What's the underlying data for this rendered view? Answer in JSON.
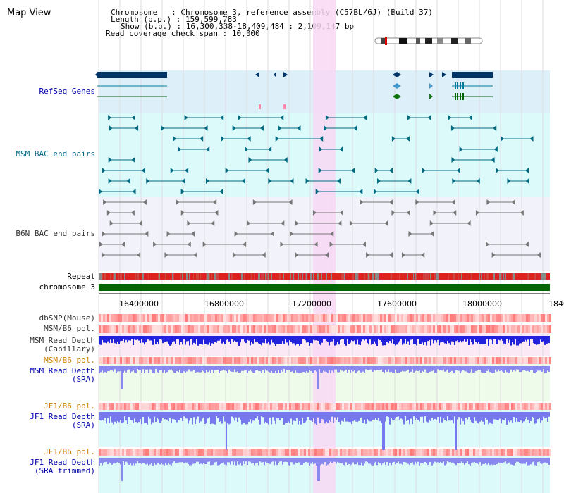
{
  "view_title": "Map View",
  "info": {
    "chromosome_label": "Chromosome",
    "chromosome_value": "Chromosome 3, reference assembly (C57BL/6J) (Build 37)",
    "length_label": "Length (b.p.)",
    "length_value": "159,599,783",
    "show_label": "Show (b.p.)",
    "show_value": "16,300,338-18,409,484 : 2,109,147 bp",
    "coverage_label": "Read coverage check span",
    "coverage_value": "10,000"
  },
  "tracks": {
    "refseq": "RefSeq Genes",
    "msm_bac": "MSM BAC end pairs",
    "b6n_bac": "B6N BAC end pairs",
    "repeat": "Repeat",
    "chromosome": "chromosome 3",
    "dbsnp": "dbSNP(Mouse)",
    "msm_b6_pol": "MSM/B6 pol.",
    "msm_depth_cap_1": "MSM Read Depth",
    "msm_depth_cap_2": "(Capillary)",
    "msm_b6_pol_2": "MSM/B6 pol.",
    "msm_depth_sra_1": "MSM Read Depth",
    "msm_depth_sra_2": "(SRA)",
    "jf1_b6_pol": "JF1/B6 pol.",
    "jf1_depth_sra_1": "JF1 Read Depth",
    "jf1_depth_sra_2": "(SRA)",
    "jf1_b6_pol_2": "JF1/B6 pol.",
    "jf1_depth_trim_1": "JF1 Read Depth",
    "jf1_depth_trim_2": "(SRA trimmed)"
  },
  "axis": {
    "ticks": [
      "16400000",
      "16800000",
      "17200000",
      "17600000",
      "18000000",
      "1840"
    ]
  },
  "colors": {
    "refseq_bg": "#ddf0fa",
    "msm_bg": "#ddfafa",
    "b6n_bg": "#f2f2fa",
    "highlight": "#f8d8f4",
    "chromosome_bar": "#006600",
    "gene_dark": "#003366",
    "gene_teal": "#007a99",
    "gene_green": "#006600",
    "bac_msm": "#006a80",
    "bac_b6n": "#666666",
    "depth_blue": "#2222dd",
    "depth_light": "#7777ee"
  }
}
